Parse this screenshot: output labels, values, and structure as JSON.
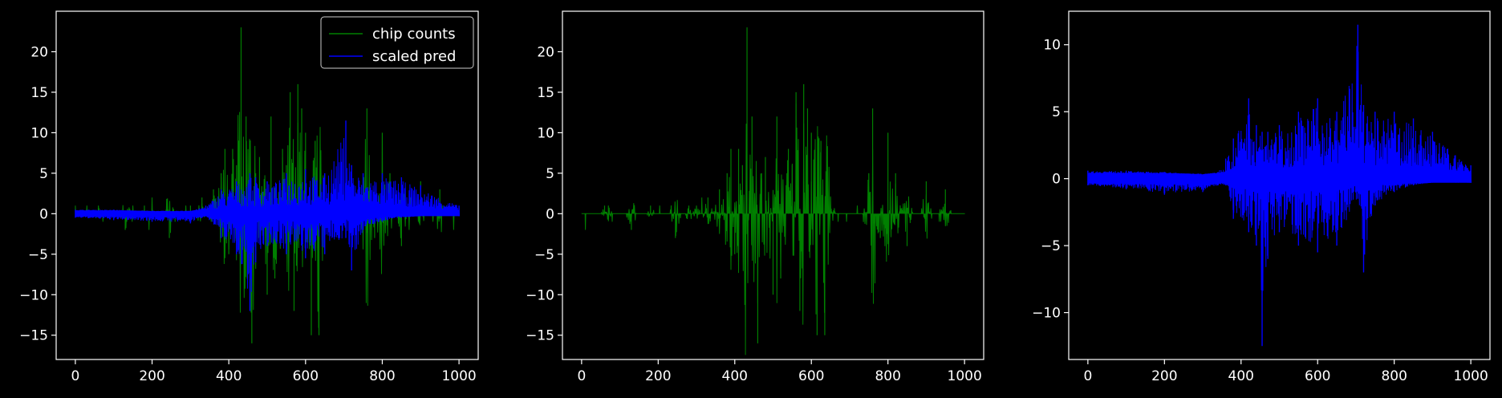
{
  "figure": {
    "background": "#000000",
    "foreground": "#ffffff"
  },
  "chart_data": [
    {
      "type": "line",
      "title": "",
      "xlabel": "",
      "ylabel": "",
      "xlim": [
        -50,
        1050
      ],
      "ylim": [
        -18,
        25
      ],
      "xticks": [
        0,
        200,
        400,
        600,
        800,
        1000
      ],
      "yticks": [
        -15,
        -10,
        -5,
        0,
        5,
        10,
        15,
        20
      ],
      "grid": false,
      "legend": {
        "placement": "top-right",
        "entries": [
          "chip counts",
          "scaled pred"
        ]
      },
      "series": [
        {
          "name": "chip counts",
          "color": "#008000",
          "style": "vertical-spikes",
          "x": [
            0,
            60,
            130,
            180,
            245,
            300,
            330,
            360,
            380,
            390,
            400,
            410,
            420,
            432,
            445,
            460,
            470,
            480,
            500,
            510,
            520,
            540,
            550,
            560,
            570,
            580,
            590,
            600,
            615,
            625,
            635,
            650,
            700,
            760,
            780,
            800,
            820,
            850,
            900,
            950,
            1000
          ],
          "y": [
            0,
            1,
            -2,
            1,
            -3,
            1,
            2,
            3,
            5,
            8,
            -5,
            8,
            6,
            23,
            12,
            -16,
            5,
            7,
            -10,
            12,
            -8,
            8,
            6,
            15,
            -12,
            16,
            13,
            10,
            -15,
            9,
            -15,
            2,
            0,
            13,
            -3,
            10,
            5,
            -4,
            4,
            3,
            0
          ]
        },
        {
          "name": "scaled pred",
          "color": "#0000ff",
          "style": "oscillating-band",
          "x": [
            0,
            100,
            200,
            300,
            340,
            380,
            420,
            455,
            470,
            500,
            550,
            600,
            650,
            705,
            720,
            750,
            800,
            850,
            900,
            1000
          ],
          "y_upper": [
            0.5,
            0.5,
            0.3,
            0.3,
            1.0,
            3.0,
            4.0,
            5.0,
            4.5,
            4.0,
            5.0,
            5.5,
            5.0,
            11.5,
            6.0,
            5.0,
            5.0,
            4.5,
            3.5,
            1.0
          ],
          "y_lower": [
            -0.5,
            -0.8,
            -1.0,
            -1.2,
            -0.3,
            -3.0,
            -5.0,
            -12.0,
            -6.0,
            -4.0,
            -5.0,
            -5.5,
            -5.0,
            -3.0,
            -7.0,
            -2.0,
            -1.0,
            -0.5,
            -0.3,
            -0.3
          ]
        }
      ]
    },
    {
      "type": "line",
      "title": "",
      "xlabel": "",
      "ylabel": "",
      "xlim": [
        -50,
        1050
      ],
      "ylim": [
        -18,
        25
      ],
      "xticks": [
        0,
        200,
        400,
        600,
        800,
        1000
      ],
      "yticks": [
        -15,
        -10,
        -5,
        0,
        5,
        10,
        15,
        20
      ],
      "grid": false,
      "series": [
        {
          "color": "#008000",
          "style": "vertical-spikes",
          "x": [
            0,
            60,
            70,
            130,
            180,
            245,
            280,
            300,
            330,
            360,
            380,
            390,
            400,
            410,
            420,
            432,
            445,
            460,
            470,
            480,
            500,
            510,
            520,
            540,
            550,
            560,
            570,
            580,
            590,
            600,
            615,
            625,
            635,
            650,
            700,
            750,
            760,
            780,
            800,
            820,
            850,
            900,
            950,
            1000
          ],
          "y": [
            0,
            1,
            1,
            -2,
            1,
            -3,
            1,
            1,
            2,
            3,
            5,
            8,
            -5,
            8,
            6,
            23,
            12,
            -16,
            5,
            7,
            -10,
            12,
            -8,
            8,
            6,
            15,
            -12,
            16,
            13,
            10,
            -15,
            9,
            -15,
            2,
            0,
            5,
            13,
            -3,
            10,
            5,
            -4,
            4,
            3,
            0
          ]
        }
      ]
    },
    {
      "type": "line",
      "title": "",
      "xlabel": "",
      "ylabel": "",
      "xlim": [
        -50,
        1050
      ],
      "ylim": [
        -13.5,
        12.5
      ],
      "xticks": [
        0,
        200,
        400,
        600,
        800,
        1000
      ],
      "yticks": [
        -10,
        -5,
        0,
        5,
        10
      ],
      "grid": false,
      "series": [
        {
          "color": "#0000ff",
          "style": "oscillating-band",
          "x": [
            0,
            100,
            200,
            300,
            340,
            360,
            380,
            420,
            440,
            455,
            470,
            500,
            550,
            600,
            650,
            705,
            720,
            750,
            800,
            850,
            900,
            1000
          ],
          "y_upper": [
            0.6,
            0.6,
            0.5,
            0.3,
            0.5,
            1.5,
            3.0,
            6.0,
            4.0,
            3.5,
            3.5,
            4.0,
            5.0,
            6.0,
            5.0,
            11.5,
            5.5,
            5.0,
            5.0,
            4.5,
            3.5,
            1.0
          ],
          "y_lower": [
            -0.5,
            -0.8,
            -1.2,
            -1.0,
            -0.5,
            -0.5,
            -3.0,
            -4.0,
            -5.0,
            -12.5,
            -6.0,
            -4.0,
            -5.0,
            -5.5,
            -5.0,
            -1.5,
            -7.0,
            -2.0,
            -1.0,
            -0.5,
            -0.3,
            -0.3
          ]
        }
      ]
    }
  ]
}
